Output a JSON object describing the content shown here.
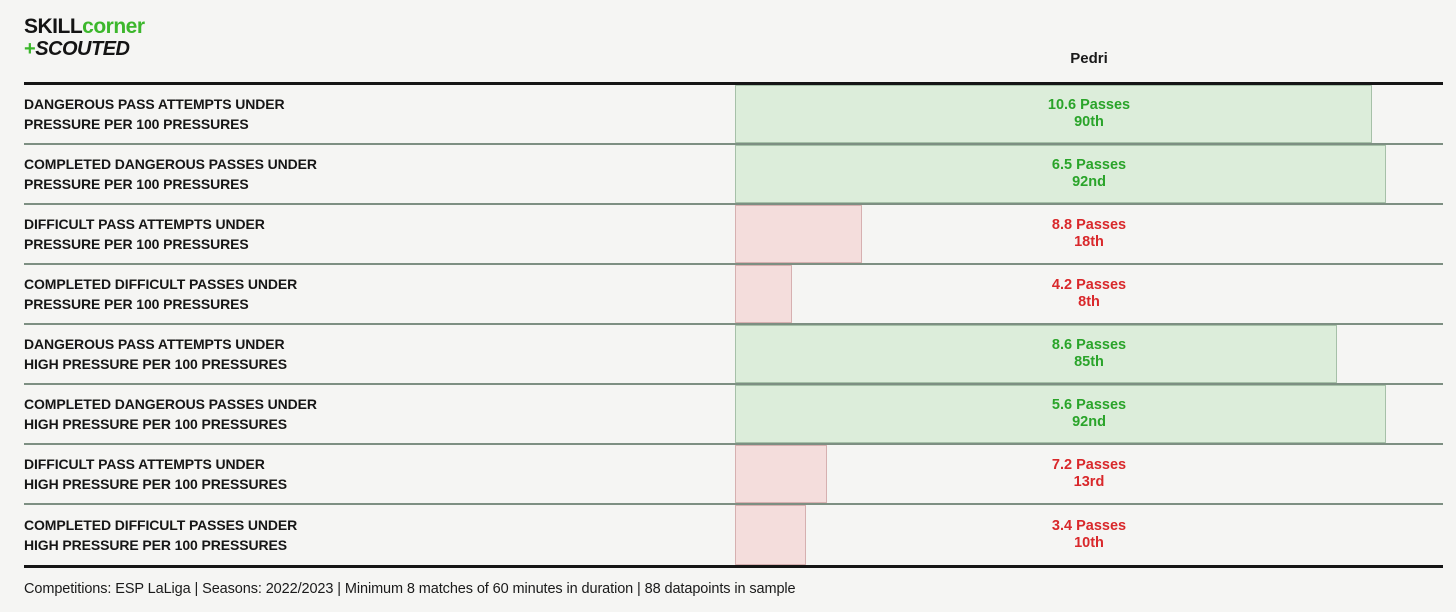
{
  "logo": {
    "skill": "SKILL",
    "corner": "corner",
    "plus": "+",
    "scouted": "SCOUTED"
  },
  "header": {
    "player_name": "Pedri"
  },
  "footer": {
    "text": "Competitions: ESP LaLiga | Seasons: 2022/2023 | Minimum 8 matches of 60 minutes in duration | 88 datapoints in sample"
  },
  "colors": {
    "brand_green": "#3cb72c",
    "positive_text": "#2aa42a",
    "negative_text": "#d9282b",
    "positive_fill": "#dcedda",
    "positive_border": "#a6c0a8",
    "negative_fill": "#f4dddc",
    "negative_border": "#d6b0b0",
    "divider": "#7d8f82",
    "frame": "#151515",
    "background": "#f5f5f3"
  },
  "chart_data": {
    "type": "bar",
    "orientation": "horizontal",
    "title": "Pedri",
    "xlabel": "",
    "ylabel": "",
    "xlim": [
      0,
      100
    ],
    "unit": "Passes per 100 pressures",
    "legend": "none",
    "grid": false,
    "bar_length_encodes": "percentile (0-100)",
    "categories": [
      "Dangerous pass attempts under pressure per 100 pressures",
      "Completed dangerous passes under pressure per 100 pressures",
      "Difficult pass attempts under pressure per 100 pressures",
      "Completed difficult passes under pressure per 100 pressures",
      "Dangerous pass attempts under high pressure per 100 pressures",
      "Completed dangerous passes under high pressure per 100 pressures",
      "Difficult pass attempts under high pressure per 100 pressures",
      "Completed difficult passes under high pressure per 100 pressures"
    ],
    "rows": [
      {
        "label_line1": "DANGEROUS PASS ATTEMPTS UNDER",
        "label_line2": "PRESSURE PER 100 PRESSURES",
        "value": 10.6,
        "value_label": "10.6 Passes",
        "percentile": 90,
        "percentile_label": "90th",
        "sentiment": "positive"
      },
      {
        "label_line1": "COMPLETED DANGEROUS PASSES UNDER",
        "label_line2": "PRESSURE PER 100 PRESSURES",
        "value": 6.5,
        "value_label": "6.5 Passes",
        "percentile": 92,
        "percentile_label": "92nd",
        "sentiment": "positive"
      },
      {
        "label_line1": "DIFFICULT PASS ATTEMPTS UNDER",
        "label_line2": "PRESSURE PER 100 PRESSURES",
        "value": 8.8,
        "value_label": "8.8 Passes",
        "percentile": 18,
        "percentile_label": "18th",
        "sentiment": "negative"
      },
      {
        "label_line1": "COMPLETED DIFFICULT PASSES UNDER",
        "label_line2": "PRESSURE PER 100 PRESSURES",
        "value": 4.2,
        "value_label": "4.2 Passes",
        "percentile": 8,
        "percentile_label": "8th",
        "sentiment": "negative"
      },
      {
        "label_line1": "DANGEROUS PASS ATTEMPTS UNDER",
        "label_line2": "HIGH PRESSURE PER 100 PRESSURES",
        "value": 8.6,
        "value_label": "8.6 Passes",
        "percentile": 85,
        "percentile_label": "85th",
        "sentiment": "positive"
      },
      {
        "label_line1": "COMPLETED DANGEROUS PASSES UNDER",
        "label_line2": "HIGH PRESSURE PER 100 PRESSURES",
        "value": 5.6,
        "value_label": "5.6 Passes",
        "percentile": 92,
        "percentile_label": "92nd",
        "sentiment": "positive"
      },
      {
        "label_line1": "DIFFICULT PASS ATTEMPTS UNDER",
        "label_line2": "HIGH PRESSURE PER 100 PRESSURES",
        "value": 7.2,
        "value_label": "7.2 Passes",
        "percentile": 13,
        "percentile_label": "13rd",
        "sentiment": "negative"
      },
      {
        "label_line1": "COMPLETED DIFFICULT PASSES UNDER",
        "label_line2": "HIGH PRESSURE PER 100 PRESSURES",
        "value": 3.4,
        "value_label": "3.4 Passes",
        "percentile": 10,
        "percentile_label": "10th",
        "sentiment": "negative"
      }
    ]
  }
}
